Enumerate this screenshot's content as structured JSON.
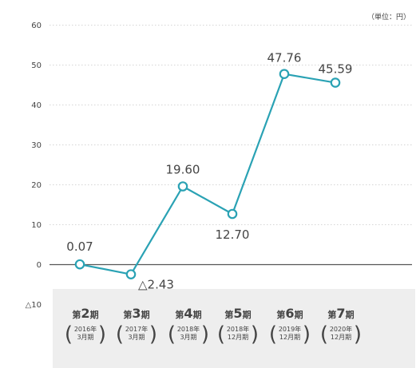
{
  "chart_data": {
    "type": "line",
    "unit_label": "（単位：円）",
    "yticks": [
      {
        "value": 60,
        "label": "60"
      },
      {
        "value": 50,
        "label": "50"
      },
      {
        "value": 40,
        "label": "40"
      },
      {
        "value": 30,
        "label": "30"
      },
      {
        "value": 20,
        "label": "20"
      },
      {
        "value": 10,
        "label": "10"
      },
      {
        "value": 0,
        "label": "0"
      },
      {
        "value": -10,
        "label": "△10"
      }
    ],
    "ylim": [
      -10,
      60
    ],
    "grid": true,
    "colors": {
      "line": "#2aa2b4",
      "marker_fill": "#ffffff",
      "grid": "#c8c8c8",
      "zero_line": "#555555",
      "label_band": "#eeeeee"
    },
    "series": [
      {
        "values": [
          0.07,
          -2.43,
          19.6,
          12.7,
          47.76,
          45.59
        ],
        "labels": [
          "0.07",
          "△2.43",
          "19.60",
          "12.70",
          "47.76",
          "45.59"
        ]
      }
    ],
    "categories": [
      {
        "prefix": "第",
        "num": "2",
        "suffix": "期",
        "sub1": "2016年",
        "sub2": "3月期"
      },
      {
        "prefix": "第",
        "num": "3",
        "suffix": "期",
        "sub1": "2017年",
        "sub2": "3月期"
      },
      {
        "prefix": "第",
        "num": "4",
        "suffix": "期",
        "sub1": "2018年",
        "sub2": "3月期"
      },
      {
        "prefix": "第",
        "num": "5",
        "suffix": "期",
        "sub1": "2018年",
        "sub2": "12月期"
      },
      {
        "prefix": "第",
        "num": "6",
        "suffix": "期",
        "sub1": "2019年",
        "sub2": "12月期"
      },
      {
        "prefix": "第",
        "num": "7",
        "suffix": "期",
        "sub1": "2020年",
        "sub2": "12月期"
      }
    ]
  }
}
